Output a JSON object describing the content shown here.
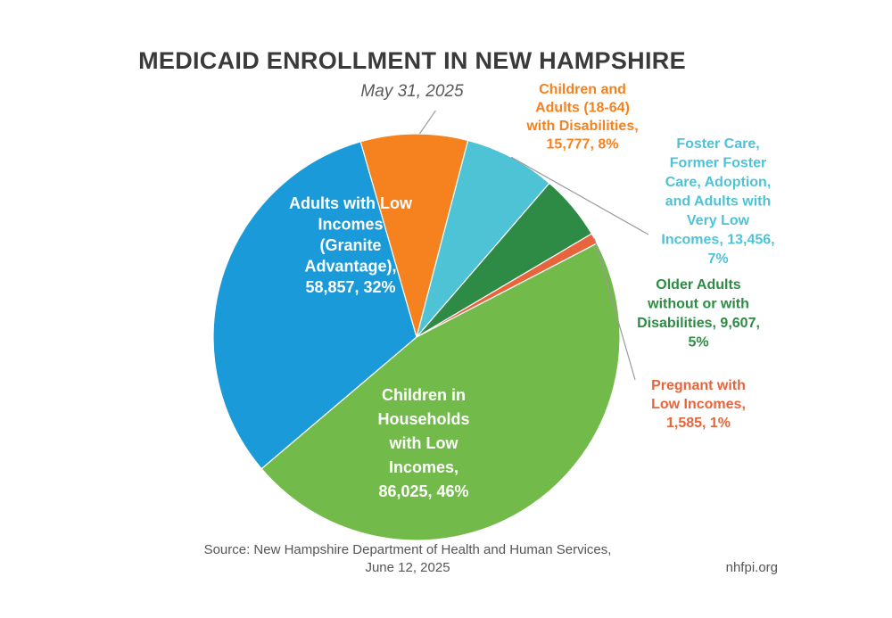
{
  "chart_data": {
    "type": "pie",
    "title": "MEDICAID ENROLLMENT IN NEW HAMPSHIRE",
    "subtitle": "May 31, 2025",
    "slices": [
      {
        "name": "Children and Adults (18-64) with Disabilities",
        "value": 15777,
        "percent": 8,
        "color": "#F5821F",
        "label_lines": [
          "Children and",
          "Adults (18-64)",
          "with Disabilities,",
          "15,777, 8%"
        ]
      },
      {
        "name": "Foster Care, Former Foster Care, Adoption, and Adults with Very Low Incomes",
        "value": 13456,
        "percent": 7,
        "color": "#4FC3D6",
        "label_lines": [
          "Foster Care,",
          "Former Foster",
          "Care, Adoption,",
          "and Adults with",
          "Very Low",
          "Incomes, 13,456,",
          "7%"
        ]
      },
      {
        "name": "Older Adults without or with Disabilities",
        "value": 9607,
        "percent": 5,
        "color": "#2E8B45",
        "label_lines": [
          "Older Adults",
          "without or with",
          "Disabilities, 9,607,",
          "5%"
        ]
      },
      {
        "name": "Pregnant with Low Incomes",
        "value": 1585,
        "percent": 1,
        "color": "#E8643C",
        "label_lines": [
          "Pregnant with",
          "Low Incomes,",
          "1,585, 1%"
        ]
      },
      {
        "name": "Children in Households with Low Incomes",
        "value": 86025,
        "percent": 46,
        "color": "#72BB4A",
        "label_lines": [
          "Children in",
          "Households",
          "with Low",
          "Incomes,",
          "86,025, 46%"
        ]
      },
      {
        "name": "Adults with Low Incomes (Granite Advantage)",
        "value": 58857,
        "percent": 32,
        "color": "#1A9AD9",
        "label_lines": [
          "Adults with Low",
          "Incomes",
          "(Granite",
          "Advantage),",
          "58,857, 32%"
        ]
      }
    ]
  },
  "source": {
    "line1": "Source: New Hampshire Department of Health and Human Services,",
    "line2": "June 12, 2025"
  },
  "watermark": "nhfpi.org"
}
